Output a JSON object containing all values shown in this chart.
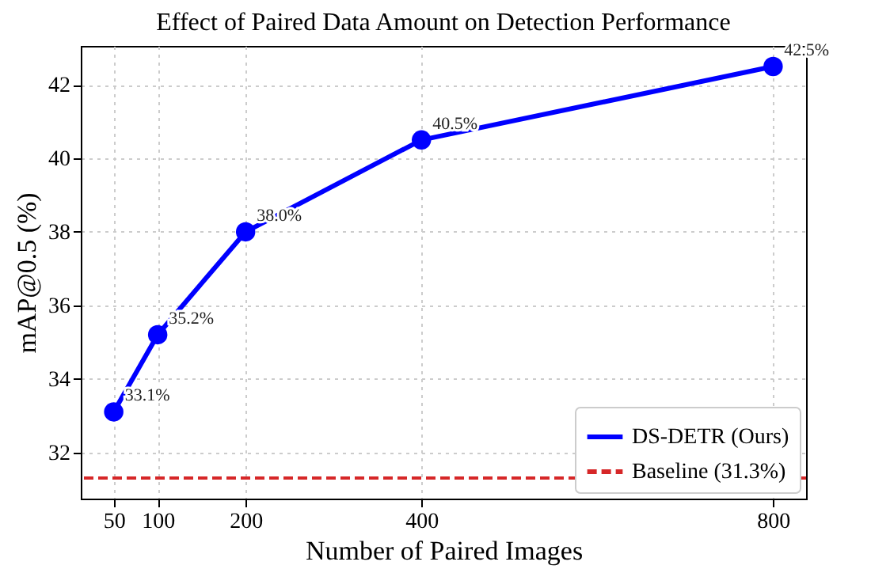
{
  "chart_data": {
    "type": "line",
    "title": "Effect of Paired Data Amount on Detection Performance",
    "xlabel": "Number of Paired Images",
    "ylabel": "mAP@0.5 (%)",
    "x": [
      50,
      100,
      200,
      400,
      800
    ],
    "series": [
      {
        "name": "DS-DETR (Ours)",
        "color": "#0000ff",
        "values": [
          33.1,
          35.2,
          38.0,
          40.5,
          42.5
        ],
        "value_labels": [
          "33.1%",
          "35.2%",
          "38.0%",
          "40.5%",
          "42.5%"
        ]
      }
    ],
    "ref_lines": [
      {
        "axis": "y",
        "value": 31.3,
        "label": "Baseline (31.3%)",
        "color": "#d62728",
        "line_style": "dashed"
      }
    ],
    "xlim": [
      12.5,
      837.5
    ],
    "xticks": [
      50,
      100,
      200,
      400,
      800
    ],
    "ylim": [
      30.74,
      43.06
    ],
    "yticks": [
      32,
      34,
      36,
      38,
      40,
      42
    ],
    "grid": true,
    "legend": "bottom right",
    "marker": "circle",
    "line_style": "solid"
  }
}
